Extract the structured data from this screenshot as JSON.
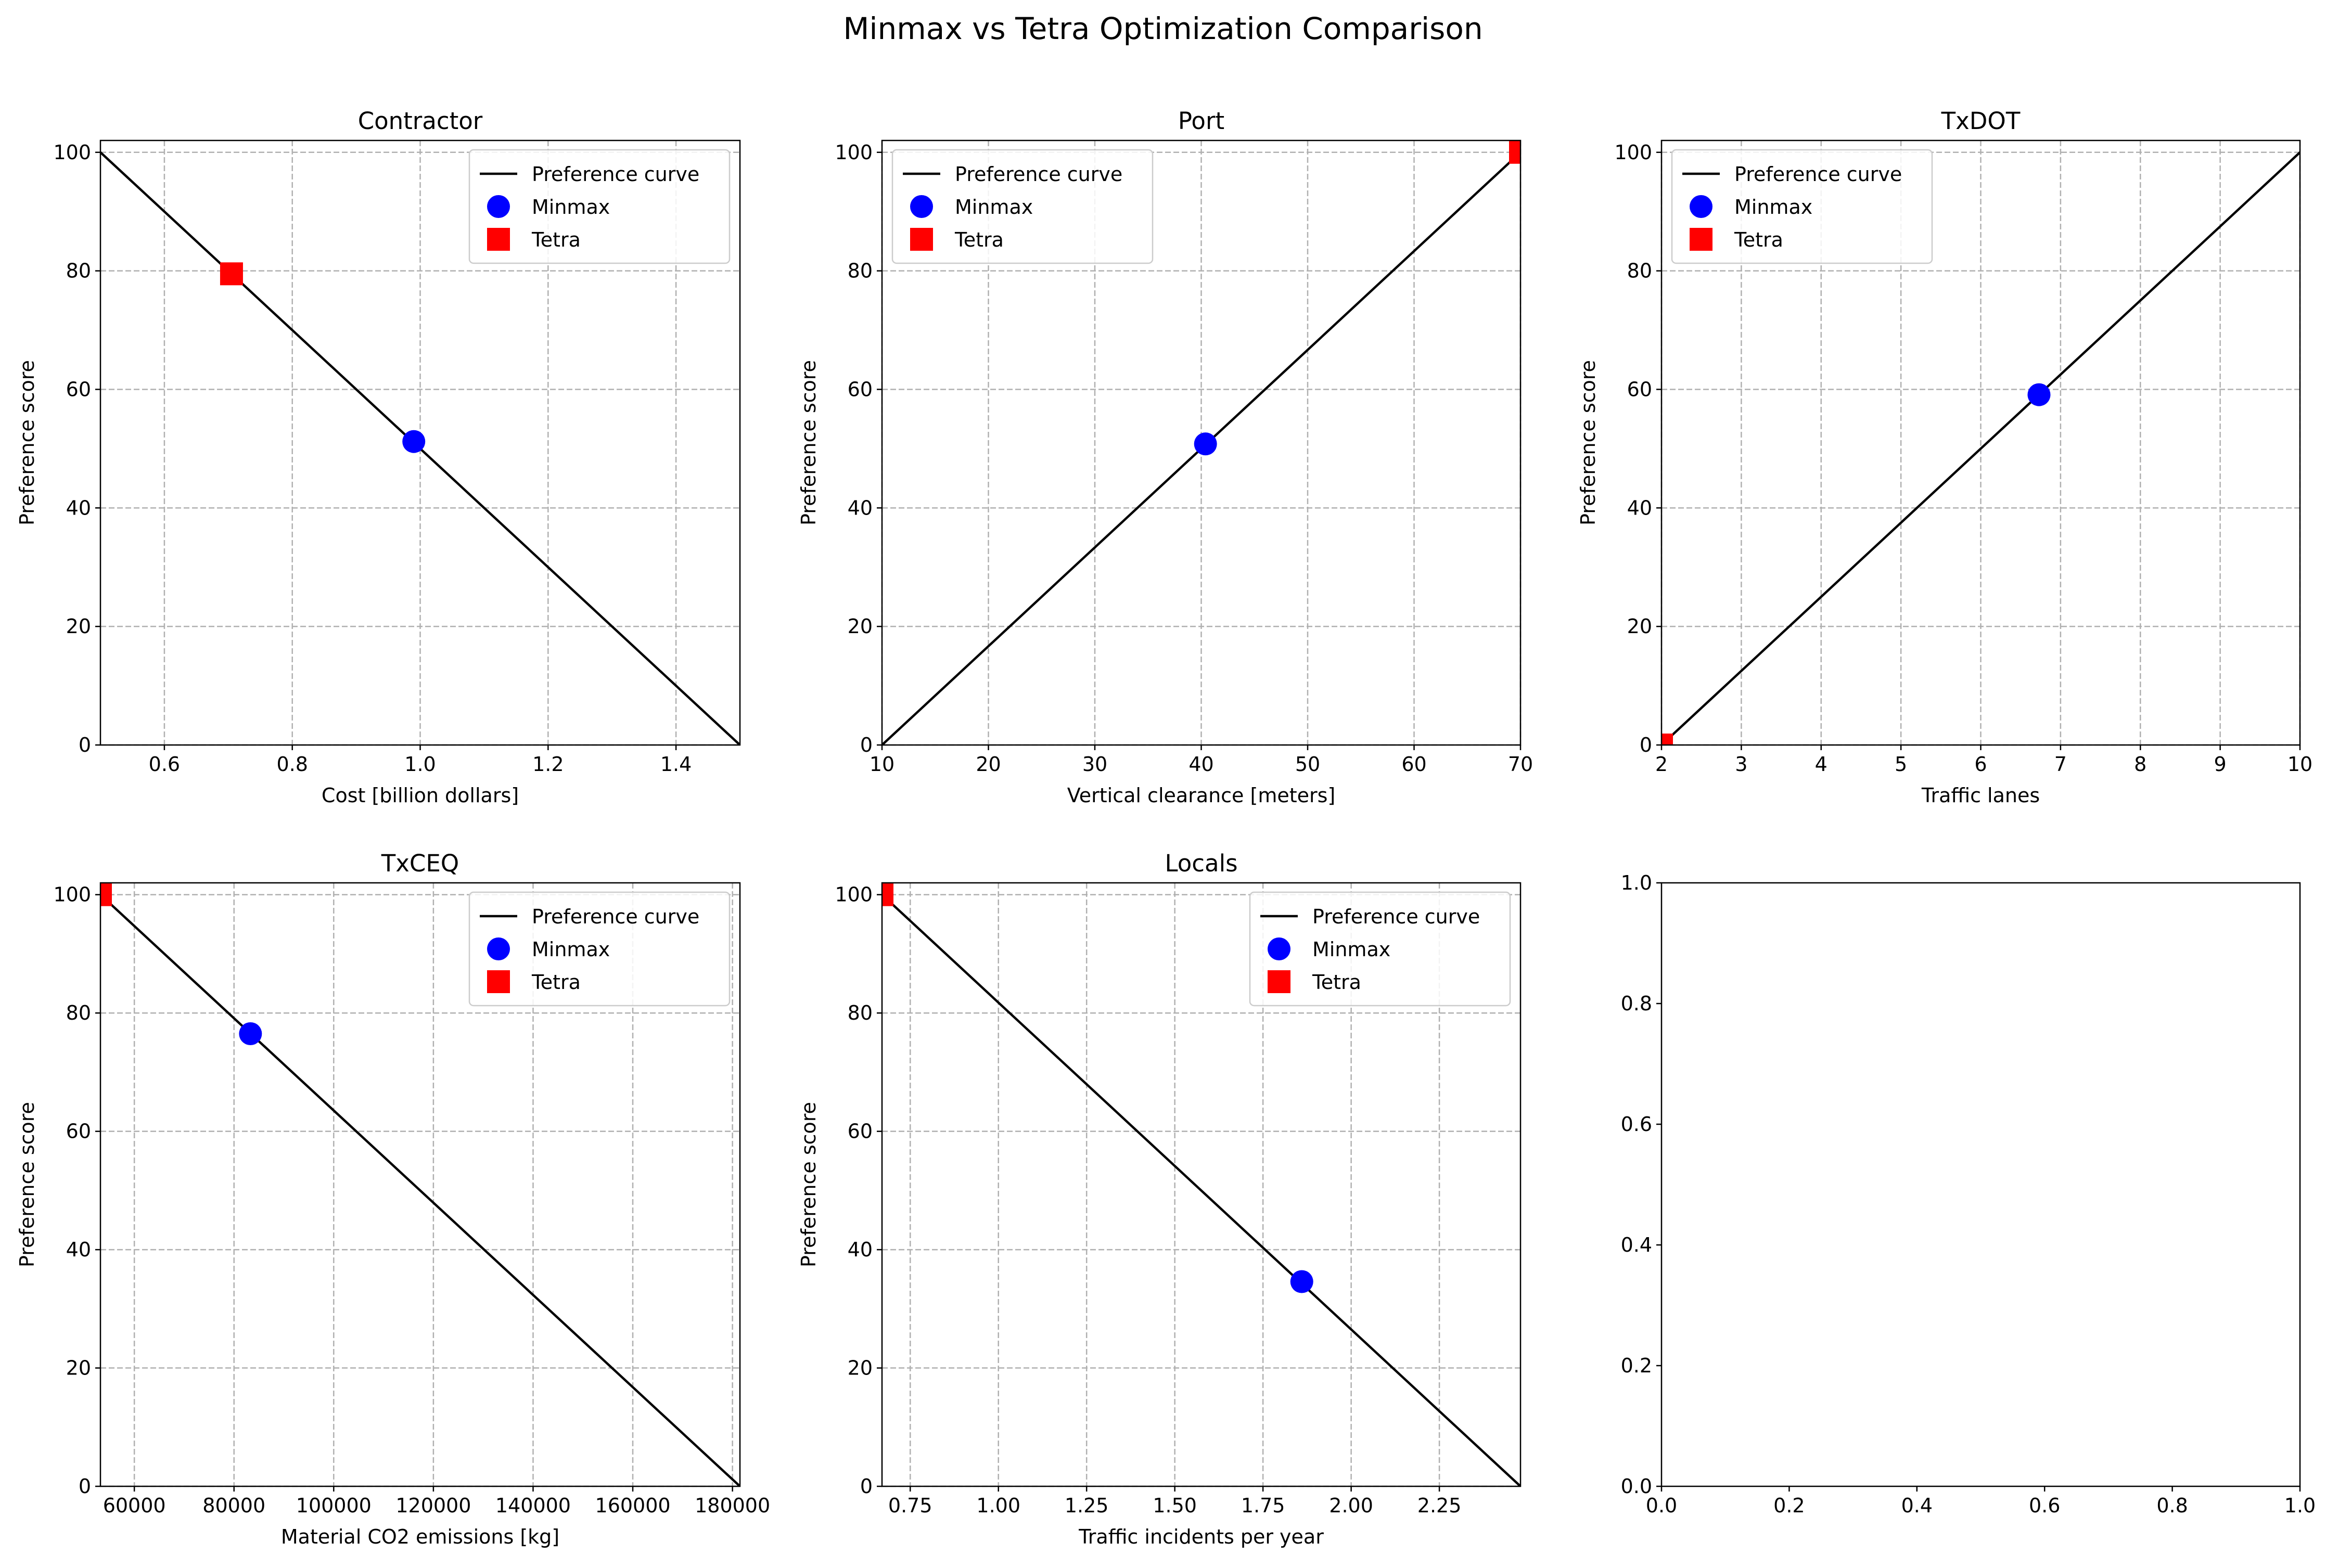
{
  "figure_title": "Minmax vs Tetra Optimization Comparison",
  "legend_labels": {
    "curve": "Preference curve",
    "minmax": "Minmax",
    "tetra": "Tetra"
  },
  "colors": {
    "curve": "#000000",
    "minmax": "#0000ff",
    "tetra": "#ff0000",
    "grid": "#b0b0b0"
  },
  "chart_data": [
    {
      "type": "line",
      "title": "Contractor",
      "xlabel": "Cost [billion dollars]",
      "ylabel": "Preference score",
      "xlim": [
        0.5,
        1.5
      ],
      "ylim": [
        0,
        102
      ],
      "xticks": [
        0.6,
        0.8,
        1.0,
        1.2,
        1.4
      ],
      "xtick_labels": [
        "0.6",
        "0.8",
        "1.0",
        "1.2",
        "1.4"
      ],
      "yticks": [
        0,
        20,
        40,
        60,
        80,
        100
      ],
      "ytick_labels": [
        "0",
        "20",
        "40",
        "60",
        "80",
        "100"
      ],
      "grid": true,
      "legend_position": "upper right",
      "series": [
        {
          "kind": "line",
          "x": [
            0.5,
            1.5
          ],
          "y": [
            100,
            0
          ]
        },
        {
          "kind": "point",
          "marker": "circle",
          "x": [
            0.99
          ],
          "y": [
            51.2
          ]
        },
        {
          "kind": "point",
          "marker": "square",
          "x": [
            0.705
          ],
          "y": [
            79.5
          ]
        }
      ]
    },
    {
      "type": "line",
      "title": "Port",
      "xlabel": "Vertical clearance [meters]",
      "ylabel": "Preference score",
      "xlim": [
        10,
        70
      ],
      "ylim": [
        0,
        102
      ],
      "xticks": [
        10,
        20,
        30,
        40,
        50,
        60,
        70
      ],
      "xtick_labels": [
        "10",
        "20",
        "30",
        "40",
        "50",
        "60",
        "70"
      ],
      "yticks": [
        0,
        20,
        40,
        60,
        80,
        100
      ],
      "ytick_labels": [
        "0",
        "20",
        "40",
        "60",
        "80",
        "100"
      ],
      "grid": true,
      "legend_position": "upper left",
      "series": [
        {
          "kind": "line",
          "x": [
            10,
            70
          ],
          "y": [
            0,
            100
          ]
        },
        {
          "kind": "point",
          "marker": "circle",
          "x": [
            40.4
          ],
          "y": [
            50.8
          ]
        },
        {
          "kind": "point",
          "marker": "square",
          "x": [
            70
          ],
          "y": [
            100
          ]
        }
      ]
    },
    {
      "type": "line",
      "title": "TxDOT",
      "xlabel": "Traffic lanes",
      "ylabel": "Preference score",
      "xlim": [
        2,
        10
      ],
      "ylim": [
        0,
        102
      ],
      "xticks": [
        2,
        3,
        4,
        5,
        6,
        7,
        8,
        9,
        10
      ],
      "xtick_labels": [
        "2",
        "3",
        "4",
        "5",
        "6",
        "7",
        "8",
        "9",
        "10"
      ],
      "yticks": [
        0,
        20,
        40,
        60,
        80,
        100
      ],
      "ytick_labels": [
        "0",
        "20",
        "40",
        "60",
        "80",
        "100"
      ],
      "grid": true,
      "legend_position": "upper left",
      "series": [
        {
          "kind": "line",
          "x": [
            2,
            10
          ],
          "y": [
            0,
            100
          ]
        },
        {
          "kind": "point",
          "marker": "circle",
          "x": [
            6.73
          ],
          "y": [
            59.1
          ]
        },
        {
          "kind": "point",
          "marker": "square",
          "x": [
            2
          ],
          "y": [
            0
          ]
        }
      ]
    },
    {
      "type": "line",
      "title": "TxCEQ",
      "xlabel": "Material CO2 emissions [kg]",
      "ylabel": "Preference score",
      "xlim": [
        53200,
        181500
      ],
      "ylim": [
        0,
        102
      ],
      "xticks": [
        60000,
        80000,
        100000,
        120000,
        140000,
        160000,
        180000
      ],
      "xtick_labels": [
        "60000",
        "80000",
        "100000",
        "120000",
        "140000",
        "160000",
        "180000"
      ],
      "yticks": [
        0,
        20,
        40,
        60,
        80,
        100
      ],
      "ytick_labels": [
        "0",
        "20",
        "40",
        "60",
        "80",
        "100"
      ],
      "grid": true,
      "legend_position": "upper right",
      "series": [
        {
          "kind": "line",
          "x": [
            53200,
            181500
          ],
          "y": [
            100,
            0
          ]
        },
        {
          "kind": "point",
          "marker": "circle",
          "x": [
            83300
          ],
          "y": [
            76.5
          ]
        },
        {
          "kind": "point",
          "marker": "square",
          "x": [
            53200
          ],
          "y": [
            100
          ]
        }
      ]
    },
    {
      "type": "line",
      "title": "Locals",
      "xlabel": "Traffic incidents per year",
      "ylabel": "Preference score",
      "xlim": [
        0.67,
        2.48
      ],
      "ylim": [
        0,
        102
      ],
      "xticks": [
        0.75,
        1.0,
        1.25,
        1.5,
        1.75,
        2.0,
        2.25
      ],
      "xtick_labels": [
        "0.75",
        "1.00",
        "1.25",
        "1.50",
        "1.75",
        "2.00",
        "2.25"
      ],
      "yticks": [
        0,
        20,
        40,
        60,
        80,
        100
      ],
      "ytick_labels": [
        "0",
        "20",
        "40",
        "60",
        "80",
        "100"
      ],
      "grid": true,
      "legend_position": "upper right",
      "series": [
        {
          "kind": "line",
          "x": [
            0.67,
            2.48
          ],
          "y": [
            100,
            0
          ]
        },
        {
          "kind": "point",
          "marker": "circle",
          "x": [
            1.86
          ],
          "y": [
            34.6
          ]
        },
        {
          "kind": "point",
          "marker": "square",
          "x": [
            0.67
          ],
          "y": [
            100
          ]
        }
      ]
    },
    {
      "type": "line",
      "title": "",
      "xlabel": "",
      "ylabel": "",
      "xlim": [
        0,
        1
      ],
      "ylim": [
        0,
        1
      ],
      "xticks": [
        0,
        0.2,
        0.4,
        0.6,
        0.8,
        1.0
      ],
      "xtick_labels": [
        "0.0",
        "0.2",
        "0.4",
        "0.6",
        "0.8",
        "1.0"
      ],
      "yticks": [
        0,
        0.2,
        0.4,
        0.6,
        0.8,
        1.0
      ],
      "ytick_labels": [
        "0.0",
        "0.2",
        "0.4",
        "0.6",
        "0.8",
        "1.0"
      ],
      "grid": false,
      "legend_position": "",
      "series": []
    }
  ]
}
